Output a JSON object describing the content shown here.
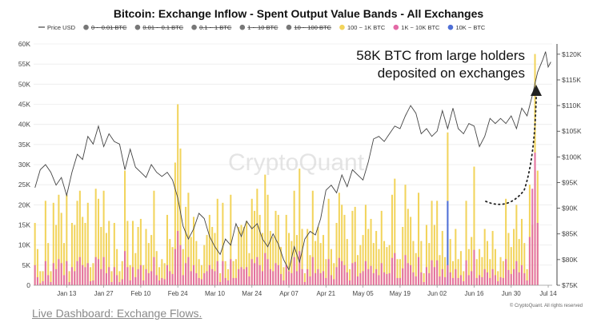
{
  "chart_data": {
    "type": "bar",
    "title": "Bitcoin: Exchange Inflow - Spent Output Value Bands - All Exchanges",
    "legend": [
      {
        "label": "Price USD",
        "color": "#444444",
        "kind": "line",
        "disabled": false
      },
      {
        "label": "0 ~ 0.01 BTC",
        "color": "#777777",
        "kind": "dot",
        "disabled": true
      },
      {
        "label": "0.01 ~ 0.1 BTC",
        "color": "#777777",
        "kind": "dot",
        "disabled": true
      },
      {
        "label": "0.1 ~ 1 BTC",
        "color": "#777777",
        "kind": "dot",
        "disabled": true
      },
      {
        "label": "1 ~ 10 BTC",
        "color": "#777777",
        "kind": "dot",
        "disabled": true
      },
      {
        "label": "10 ~ 100 BTC",
        "color": "#777777",
        "kind": "dot",
        "disabled": true
      },
      {
        "label": "100 ~ 1K BTC",
        "color": "#f2d45c",
        "kind": "dot",
        "disabled": false
      },
      {
        "label": "1K ~ 10K BTC",
        "color": "#e36aa6",
        "kind": "dot",
        "disabled": false
      },
      {
        "label": "10K ~ BTC",
        "color": "#4f6fd6",
        "kind": "dot",
        "disabled": false
      }
    ],
    "left_axis": {
      "min": 0,
      "max": 60000,
      "ticks": [
        0,
        5000,
        10000,
        15000,
        20000,
        25000,
        30000,
        35000,
        40000,
        45000,
        50000,
        55000,
        60000
      ],
      "tick_labels": [
        "0",
        "5K",
        "10K",
        "15K",
        "20K",
        "25K",
        "30K",
        "35K",
        "40K",
        "45K",
        "50K",
        "55K",
        "60K"
      ]
    },
    "right_axis": {
      "min": 75000,
      "max": 122000,
      "ticks": [
        75000,
        80000,
        85000,
        90000,
        95000,
        100000,
        105000,
        110000,
        115000,
        120000
      ],
      "tick_labels": [
        "$75K",
        "$80K",
        "$85K",
        "$90K",
        "$95K",
        "$100K",
        "$105K",
        "$110K",
        "$115K",
        "$120K"
      ]
    },
    "x_axis": {
      "start": "2025-01-01",
      "days": 196,
      "ticks": [
        {
          "label": "Jan 13",
          "day": 12
        },
        {
          "label": "Jan 27",
          "day": 26
        },
        {
          "label": "Feb 10",
          "day": 40
        },
        {
          "label": "Feb 24",
          "day": 54
        },
        {
          "label": "Mar 10",
          "day": 68
        },
        {
          "label": "Mar 24",
          "day": 82
        },
        {
          "label": "Apr 07",
          "day": 96
        },
        {
          "label": "Apr 21",
          "day": 110
        },
        {
          "label": "May 05",
          "day": 124
        },
        {
          "label": "May 19",
          "day": 138
        },
        {
          "label": "Jun 02",
          "day": 152
        },
        {
          "label": "Jun 16",
          "day": 166
        },
        {
          "label": "Jun 30",
          "day": 180
        },
        {
          "label": "Jul 14",
          "day": 194
        }
      ]
    },
    "series": [
      {
        "name": "100 ~ 1K BTC",
        "color": "#f2d45c",
        "values": [
          15500,
          9000,
          3500,
          3500,
          21000,
          10500,
          3500,
          20500,
          15000,
          22500,
          18000,
          10500,
          22500,
          3500,
          15500,
          15000,
          21000,
          23500,
          17000,
          15500,
          20500,
          4500,
          5500,
          24000,
          21500,
          14500,
          23500,
          13000,
          16000,
          3500,
          15500,
          9000,
          3500,
          6000,
          28500,
          16000,
          5000,
          16000,
          8000,
          14500,
          16500,
          5000,
          14000,
          10500,
          12500,
          23500,
          8500,
          4500,
          6500,
          5500,
          17500,
          11500,
          9500,
          30500,
          45000,
          34000,
          9000,
          19500,
          23000,
          12000,
          17000,
          11000,
          6500,
          5000,
          10000,
          12500,
          17500,
          14500,
          13000,
          21500,
          3000,
          20500,
          6000,
          4000,
          22500,
          6000,
          6500,
          14500,
          15000,
          14500,
          16000,
          8000,
          21500,
          18500,
          24000,
          17500,
          13000,
          27500,
          22500,
          13500,
          12000,
          18500,
          17500,
          9500,
          4500,
          17500,
          13000,
          11000,
          23500,
          12500,
          29000,
          14000,
          3000,
          14000,
          7500,
          23500,
          11000,
          14500,
          10500,
          12500,
          6500,
          21500,
          9000,
          5500,
          15500,
          23000,
          20000,
          17500,
          11500,
          4000,
          18500,
          19500,
          7500,
          10000,
          12500,
          20000,
          14000,
          16500,
          10500,
          13500,
          9000,
          18500,
          11000,
          9500,
          10000,
          22500,
          26500,
          6500,
          6500,
          14500,
          25000,
          19000,
          17000,
          11000,
          8000,
          23000,
          11000,
          3000,
          15000,
          10500,
          21000,
          15000,
          21000,
          7500,
          13500,
          7000,
          17000,
          11500,
          6000,
          14000,
          6500,
          8500,
          3500,
          21000,
          9000,
          12000,
          29500,
          6500,
          9000,
          7000,
          14000,
          11000,
          6500,
          13500,
          9000,
          3500,
          7000,
          6000,
          21500,
          13000,
          9500,
          14000,
          20000,
          11500,
          16500,
          10500,
          4000,
          25000,
          15000,
          57500,
          28500
        ]
      },
      {
        "name": "1K ~ 10K BTC",
        "color": "#e36aa6",
        "values": [
          5000,
          2000,
          500,
          1000,
          6000,
          2500,
          800,
          5500,
          4000,
          6500,
          5500,
          2500,
          6000,
          800,
          4500,
          3500,
          6000,
          7000,
          5000,
          4500,
          5500,
          1000,
          1200,
          7000,
          6500,
          4000,
          7000,
          3000,
          4500,
          800,
          4500,
          2500,
          800,
          1500,
          8500,
          4500,
          1200,
          4500,
          2000,
          4000,
          5000,
          1200,
          4000,
          3000,
          3500,
          7000,
          2500,
          1200,
          1800,
          1500,
          5000,
          3500,
          2800,
          9000,
          13500,
          10000,
          2500,
          5500,
          7000,
          3500,
          5000,
          3000,
          1800,
          1500,
          3000,
          3500,
          5000,
          4000,
          3500,
          6000,
          800,
          6000,
          1800,
          1200,
          6500,
          1800,
          1800,
          4000,
          4500,
          4000,
          4500,
          2200,
          6500,
          5500,
          7000,
          5000,
          3500,
          8000,
          6500,
          4000,
          3500,
          5500,
          5000,
          2800,
          1200,
          5000,
          3500,
          3000,
          7000,
          3500,
          8500,
          4000,
          800,
          4000,
          2200,
          7000,
          3000,
          4000,
          3000,
          3500,
          1800,
          6500,
          2500,
          1500,
          4500,
          6800,
          6000,
          5000,
          3200,
          1200,
          5500,
          5800,
          2200,
          3000,
          3500,
          6000,
          4000,
          4800,
          3000,
          4000,
          2500,
          5500,
          3200,
          2800,
          3000,
          6800,
          8000,
          1800,
          1800,
          4200,
          7500,
          5500,
          5000,
          3200,
          2200,
          7000,
          3200,
          800,
          4500,
          3000,
          6200,
          4500,
          6200,
          2200,
          4000,
          2000,
          5000,
          3200,
          1800,
          4000,
          1800,
          2500,
          1000,
          6200,
          2500,
          3500,
          8800,
          1800,
          2500,
          2000,
          4000,
          3200,
          1800,
          4000,
          2500,
          1000,
          2000,
          1800,
          6500,
          3800,
          2800,
          4000,
          6000,
          3200,
          5000,
          3000,
          1200,
          12000,
          24000,
          33000,
          15500
        ]
      },
      {
        "name": "10K ~ BTC",
        "color": "#4f6fd6",
        "values": [
          0,
          0,
          0,
          0,
          0,
          0,
          0,
          0,
          0,
          0,
          0,
          0,
          0,
          0,
          0,
          0,
          0,
          0,
          0,
          0,
          0,
          0,
          0,
          0,
          0,
          0,
          0,
          0,
          0,
          0,
          0,
          0,
          0,
          0,
          0,
          0,
          0,
          0,
          0,
          0,
          0,
          0,
          0,
          0,
          0,
          0,
          0,
          0,
          0,
          0,
          0,
          0,
          0,
          0,
          0,
          0,
          0,
          0,
          0,
          0,
          0,
          0,
          0,
          0,
          0,
          0,
          0,
          0,
          0,
          0,
          0,
          0,
          0,
          0,
          0,
          0,
          0,
          0,
          0,
          0,
          0,
          0,
          0,
          0,
          0,
          0,
          0,
          0,
          0,
          0,
          0,
          0,
          0,
          0,
          0,
          0,
          0,
          0,
          0,
          0,
          0,
          0,
          0,
          0,
          0,
          0,
          0,
          0,
          0,
          0,
          0,
          0,
          0,
          0,
          0,
          0,
          0,
          0,
          0,
          0,
          0,
          0,
          0,
          0,
          0,
          0,
          0,
          0,
          0,
          0,
          0,
          0,
          0,
          0,
          0,
          0,
          0,
          0,
          0,
          0,
          0,
          0,
          0,
          0,
          0,
          0,
          0,
          0,
          0,
          0,
          0,
          0,
          0,
          0,
          0,
          0,
          21000,
          0,
          0,
          0,
          0,
          0,
          0,
          0,
          0,
          0,
          0,
          0,
          0,
          0,
          0,
          0,
          0,
          0,
          0,
          0,
          0,
          0,
          0,
          0,
          0,
          0,
          0,
          0,
          0,
          0,
          0,
          0,
          0,
          0,
          0
        ]
      },
      {
        "name": "Price USD",
        "color": "#444444",
        "kind": "line",
        "points": [
          [
            0,
            94000
          ],
          [
            2,
            97500
          ],
          [
            4,
            98500
          ],
          [
            6,
            97000
          ],
          [
            8,
            94500
          ],
          [
            10,
            96000
          ],
          [
            12,
            92500
          ],
          [
            14,
            97000
          ],
          [
            16,
            100500
          ],
          [
            18,
            99500
          ],
          [
            20,
            104000
          ],
          [
            22,
            102500
          ],
          [
            24,
            106000
          ],
          [
            26,
            102000
          ],
          [
            28,
            104500
          ],
          [
            30,
            103000
          ],
          [
            32,
            102500
          ],
          [
            34,
            97500
          ],
          [
            36,
            101500
          ],
          [
            38,
            98000
          ],
          [
            40,
            97000
          ],
          [
            42,
            96000
          ],
          [
            44,
            98500
          ],
          [
            46,
            97000
          ],
          [
            48,
            96200
          ],
          [
            50,
            97000
          ],
          [
            52,
            95500
          ],
          [
            54,
            92000
          ],
          [
            56,
            86500
          ],
          [
            58,
            84000
          ],
          [
            60,
            86000
          ],
          [
            62,
            89000
          ],
          [
            64,
            88000
          ],
          [
            66,
            84500
          ],
          [
            68,
            82500
          ],
          [
            70,
            81000
          ],
          [
            72,
            84000
          ],
          [
            74,
            82800
          ],
          [
            76,
            87000
          ],
          [
            78,
            84500
          ],
          [
            80,
            87500
          ],
          [
            82,
            86000
          ],
          [
            84,
            87000
          ],
          [
            86,
            84000
          ],
          [
            88,
            82500
          ],
          [
            90,
            85000
          ],
          [
            92,
            83000
          ],
          [
            94,
            80000
          ],
          [
            96,
            78000
          ],
          [
            98,
            82500
          ],
          [
            100,
            79500
          ],
          [
            102,
            84000
          ],
          [
            104,
            85500
          ],
          [
            106,
            84800
          ],
          [
            108,
            88000
          ],
          [
            110,
            93500
          ],
          [
            112,
            94500
          ],
          [
            114,
            93000
          ],
          [
            116,
            96500
          ],
          [
            118,
            94200
          ],
          [
            120,
            97500
          ],
          [
            122,
            96500
          ],
          [
            124,
            95500
          ],
          [
            126,
            99000
          ],
          [
            128,
            103500
          ],
          [
            130,
            104000
          ],
          [
            132,
            103000
          ],
          [
            134,
            104500
          ],
          [
            136,
            106000
          ],
          [
            138,
            105500
          ],
          [
            140,
            108000
          ],
          [
            142,
            110000
          ],
          [
            144,
            108500
          ],
          [
            146,
            104500
          ],
          [
            148,
            105500
          ],
          [
            150,
            104000
          ],
          [
            152,
            105000
          ],
          [
            154,
            109000
          ],
          [
            156,
            105500
          ],
          [
            158,
            109500
          ],
          [
            160,
            105500
          ],
          [
            162,
            104500
          ],
          [
            164,
            106500
          ],
          [
            166,
            106000
          ],
          [
            168,
            102000
          ],
          [
            170,
            104000
          ],
          [
            172,
            107500
          ],
          [
            174,
            106500
          ],
          [
            176,
            107500
          ],
          [
            178,
            106500
          ],
          [
            180,
            108000
          ],
          [
            182,
            105500
          ],
          [
            184,
            109500
          ],
          [
            186,
            108000
          ],
          [
            188,
            112000
          ],
          [
            190,
            116500
          ],
          [
            192,
            119000
          ],
          [
            193,
            120500
          ],
          [
            194,
            117500
          ],
          [
            195,
            118500
          ]
        ]
      }
    ],
    "annotation": {
      "lines": [
        "58K BTC from large holders",
        "deposited on exchanges"
      ]
    },
    "watermark": "CryptoQuant",
    "credit": "© CryptoQuant. All rights reserved"
  },
  "footer": {
    "link_text": "Live Dashboard: Exchange Flows."
  }
}
